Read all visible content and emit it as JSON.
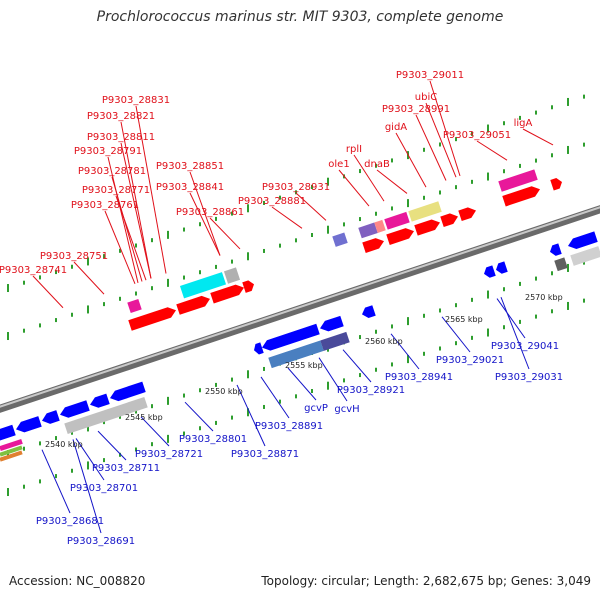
{
  "title": "Prochlorococcus marinus str. MIT 9303, complete genome",
  "footer": {
    "accession": "Accession: NC_008820",
    "summary": "Topology: circular; Length: 2,682,675 bp; Genes: 3,049"
  },
  "colors": {
    "forward_label": "#e0101a",
    "reverse_label": "#1414c8",
    "forward_gene": "#ff0000",
    "reverse_gene": "#0000ff",
    "genome_track": "#888888",
    "tick_mark": "#2e9e2e"
  },
  "scale": {
    "ticks": [
      "2540 kbp",
      "2545 kbp",
      "2550 kbp",
      "2555 kbp",
      "2560 kbp",
      "2565 kbp",
      "2570 kbp"
    ]
  },
  "top_labels": [
    "P9303_28831",
    "P9303_28821",
    "P9303_28811",
    "P9303_28791",
    "P9303_28781",
    "P9303_28771",
    "P9303_28761",
    "P9303_28851",
    "P9303_28841",
    "P9303_28861",
    "P9303_28751",
    "P9303_28741",
    "P9303_28931",
    "P9303_28881",
    "P9303_29011",
    "ubiC",
    "P9303_28991",
    "gidA",
    "rplI",
    "ole1",
    "dnaB",
    "P9303_29051",
    "ligA"
  ],
  "bottom_labels": [
    "2540 kbp",
    "P9303_28681",
    "P9303_28691",
    "P9303_28701",
    "P9303_28711",
    "P9303_28721",
    "P9303_28801",
    "P9303_28891",
    "P9303_28871",
    "gcvP",
    "gcvH",
    "P9303_28921",
    "P9303_28941",
    "P9303_29021",
    "P9303_29041",
    "P9303_29031"
  ]
}
